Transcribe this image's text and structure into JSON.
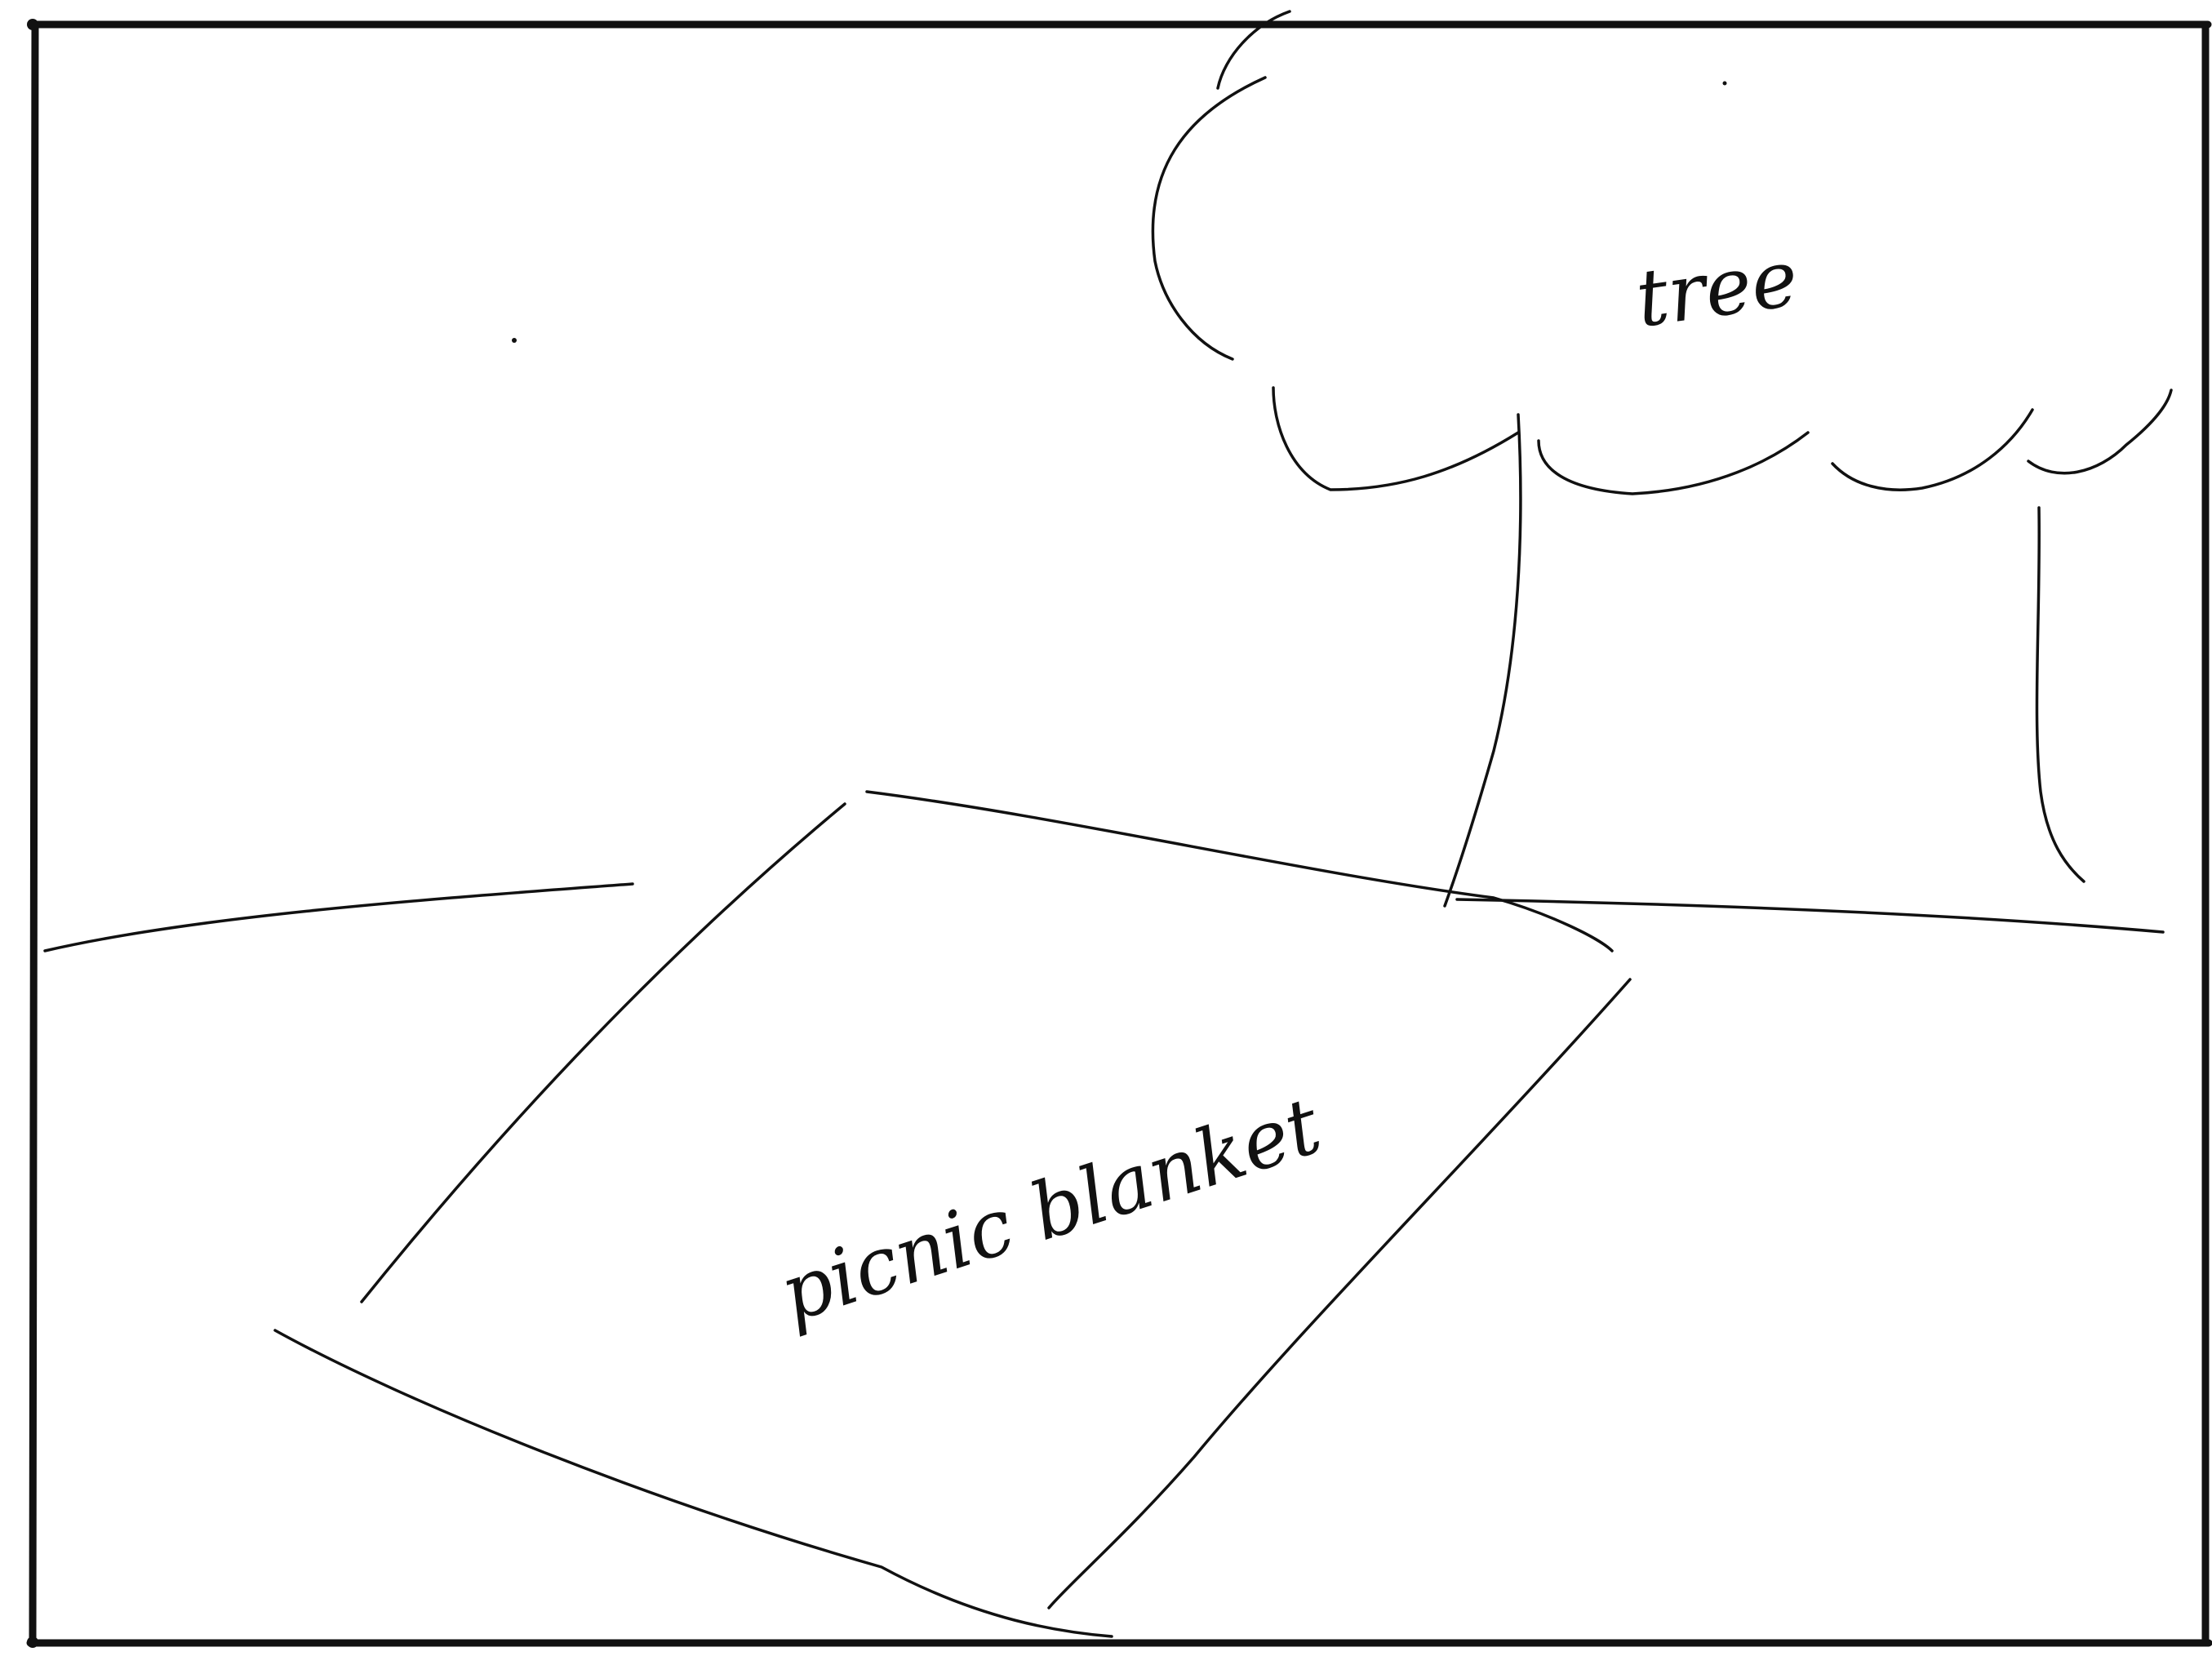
{
  "labels": {
    "tree": "tree",
    "blanket": "picnic blanket"
  },
  "colors": {
    "ink": "#111111",
    "paper": "#ffffff"
  }
}
